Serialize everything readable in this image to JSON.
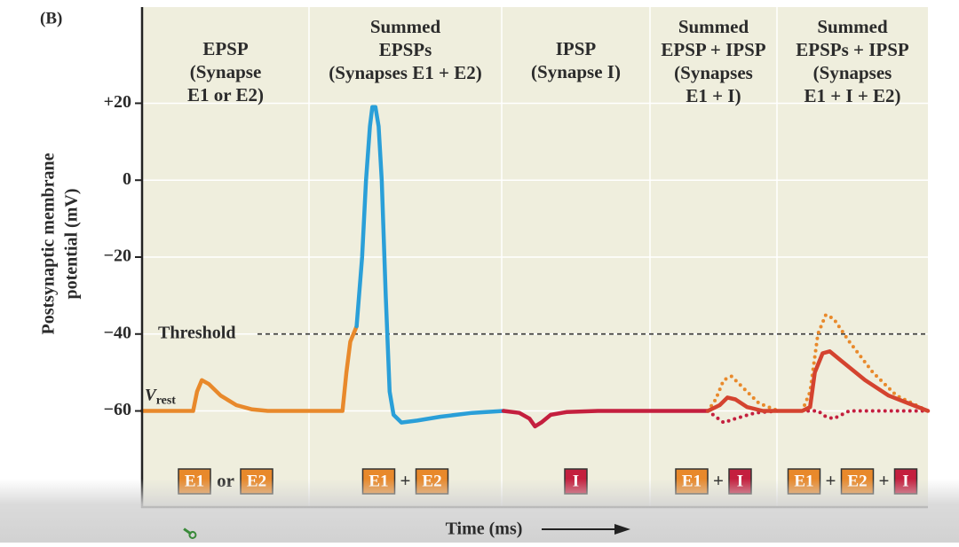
{
  "chart_data": {
    "type": "line",
    "title": "(B)",
    "y_label": [
      "Postsynaptic membrane",
      "potential (mV)"
    ],
    "x_label": "Time (ms)",
    "xlim": [
      0,
      100
    ],
    "ylim": [
      -85,
      45
    ],
    "yticks": [
      {
        "value": 20,
        "label": "+20"
      },
      0,
      {
        "value": -20,
        "label": "−20"
      },
      {
        "value": -40,
        "label": "−40"
      },
      {
        "value": -60,
        "label": "−60"
      }
    ],
    "grid": true,
    "threshold": {
      "label": "Threshold",
      "value": -40
    },
    "rest_label": {
      "symbol": "V",
      "subscript": "rest"
    },
    "panels": [
      {
        "title": [
          "EPSP",
          "(Synapse",
          "E1 or E2)"
        ],
        "stimulus": [
          {
            "text": "E1",
            "color": "#e8892b"
          },
          {
            "text": "or"
          },
          {
            "text": "E2",
            "color": "#e8892b"
          }
        ]
      },
      {
        "title": [
          "Summed",
          "EPSPs",
          "(Synapses E1 + E2)"
        ],
        "stimulus": [
          {
            "text": "E1",
            "color": "#e8892b"
          },
          {
            "text": "+"
          },
          {
            "text": "E2",
            "color": "#e8892b"
          }
        ]
      },
      {
        "title": [
          "IPSP",
          "(Synapse I)"
        ],
        "stimulus": [
          {
            "text": "I",
            "color": "#c41f3e"
          }
        ]
      },
      {
        "title": [
          "Summed",
          "EPSP + IPSP",
          "(Synapses",
          "E1 + I)"
        ],
        "stimulus": [
          {
            "text": "E1",
            "color": "#e8892b"
          },
          {
            "text": "+"
          },
          {
            "text": "I",
            "color": "#c41f3e"
          }
        ]
      },
      {
        "title": [
          "Summed",
          "EPSPs + IPSP",
          "(Synapses",
          "E1 + I + E2)"
        ],
        "stimulus": [
          {
            "text": "E1",
            "color": "#e8892b"
          },
          {
            "text": "+"
          },
          {
            "text": "E2",
            "color": "#e8892b"
          },
          {
            "text": "+"
          },
          {
            "text": "I",
            "color": "#c41f3e"
          }
        ]
      }
    ],
    "series": [
      {
        "color": "#e8892b",
        "style": "solid",
        "x": [
          0,
          6.5,
          7,
          7.6,
          8.5,
          10,
          12,
          14,
          16,
          20,
          25.5,
          26,
          26.5,
          27.3
        ],
        "values": [
          -60,
          -60,
          -55,
          -52,
          -53,
          -56,
          -58.5,
          -59.6,
          -60,
          -60,
          -60,
          -50,
          -42,
          -38
        ]
      },
      {
        "color": "#2a9fd8",
        "style": "solid",
        "x": [
          27.3,
          28,
          28.5,
          29,
          29.3,
          29.7,
          30.1,
          30.5,
          31,
          31.5,
          32,
          33,
          35,
          38,
          42,
          46
        ],
        "values": [
          -38,
          -20,
          0,
          14,
          19,
          19,
          14,
          0,
          -30,
          -55,
          -61,
          -63,
          -62.5,
          -61.5,
          -60.5,
          -60
        ]
      },
      {
        "color": "#c41f3e",
        "style": "solid",
        "x": [
          46,
          48,
          49.3,
          50,
          50.8,
          52,
          54,
          58,
          72
        ],
        "values": [
          -60,
          -60.5,
          -62,
          -64,
          -63,
          -61,
          -60.3,
          -60,
          -60
        ]
      },
      {
        "color": "#e8892b",
        "style": "dotted",
        "x": [
          72,
          73,
          74,
          75,
          76.5,
          78.5,
          81,
          null,
          84,
          85,
          86,
          87,
          88,
          90,
          93,
          96,
          100
        ],
        "values": [
          -60,
          -57,
          -52,
          -51,
          -54,
          -58,
          -60,
          null,
          -60,
          -55,
          -40,
          -35,
          -36,
          -42,
          -50,
          -56,
          -60
        ]
      },
      {
        "color": "#c41f3e",
        "style": "dotted",
        "x": [
          72,
          73,
          74,
          75.5,
          78,
          81,
          84,
          86,
          87,
          88,
          89,
          90,
          100
        ],
        "values": [
          -60,
          -61.5,
          -63,
          -62,
          -60.5,
          -60,
          -60,
          -60,
          -61.5,
          -62,
          -61,
          -60,
          -60
        ]
      },
      {
        "color": "#d4432f",
        "style": "solid",
        "x": [
          72,
          73.5,
          74.5,
          75.5,
          77,
          79,
          81,
          84,
          85,
          85.6,
          86.6,
          87.5,
          89,
          92,
          95,
          100
        ],
        "values": [
          -60,
          -58.5,
          -56.5,
          -57,
          -59,
          -60,
          -60,
          -60,
          -59,
          -50,
          -45,
          -44.5,
          -47,
          -52,
          -56,
          -60
        ]
      }
    ]
  }
}
